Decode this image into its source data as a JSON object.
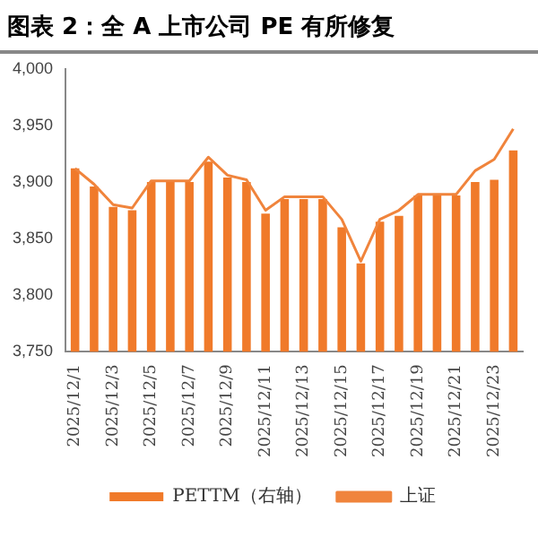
{
  "chart_data": {
    "type": "bar",
    "title": "图表 2：全 A 上市公司 PE 有所修复",
    "categories": [
      "2025/12/1",
      null,
      "2025/12/3",
      null,
      "2025/12/5",
      null,
      "2025/12/7",
      null,
      "2025/12/9",
      null,
      "2025/12/11",
      null,
      "2025/12/13",
      null,
      "2025/12/15",
      null,
      "2025/12/17",
      null,
      "2025/12/19",
      null,
      "2025/12/21",
      null,
      "2025/12/23",
      null
    ],
    "series": [
      {
        "name": "PETTM（右轴）",
        "color": "#f07a2a",
        "values": [
          3912,
          3896,
          3878,
          3875,
          3900,
          3900,
          3900,
          3918,
          3904,
          3900,
          3872,
          3885,
          3885,
          3885,
          3860,
          3828,
          3865,
          3870,
          3888,
          3888,
          3888,
          3900,
          3902,
          3928
        ]
      },
      {
        "name": "上证",
        "type": "line",
        "color": "#f0843c",
        "values": [
          3912,
          3898,
          3880,
          3877,
          3901,
          3901,
          3901,
          3922,
          3906,
          3902,
          3875,
          3887,
          3887,
          3887,
          3867,
          3830,
          3867,
          3875,
          3889,
          3889,
          3889,
          3910,
          3920,
          3947
        ]
      }
    ],
    "ylim": [
      3750,
      4000
    ],
    "yticks": [
      {
        "value": 3750,
        "label": "3,750"
      },
      {
        "value": 3800,
        "label": "3,800"
      },
      {
        "value": 3850,
        "label": "3,850"
      },
      {
        "value": 3900,
        "label": "3,900"
      },
      {
        "value": 3950,
        "label": "3,950"
      },
      {
        "value": 4000,
        "label": "4,000"
      }
    ],
    "grid": false,
    "legend": "bottom",
    "marker": "none",
    "line_style": "solid"
  }
}
